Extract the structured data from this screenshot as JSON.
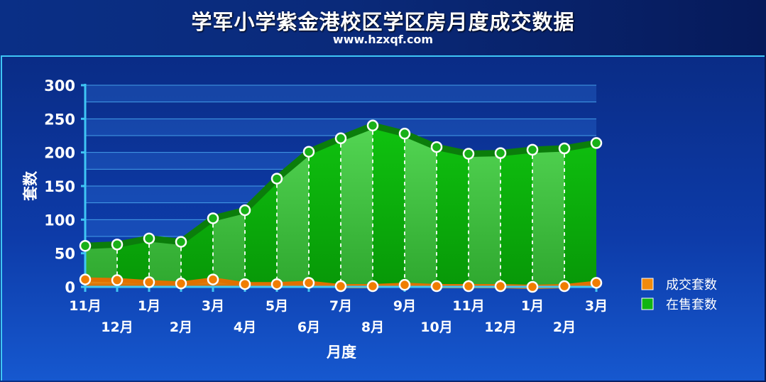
{
  "header": {
    "title": "学军小学紫金港校区学区房月度成交数据",
    "subtitle": "www.hzxqf.com"
  },
  "chart_data": {
    "type": "area",
    "title": "学军小学紫金港校区学区房月度成交数据",
    "subtitle": "www.hzxqf.com",
    "xlabel": "月度",
    "ylabel": "套数",
    "ylim": [
      0,
      300
    ],
    "yticks": [
      0,
      50,
      100,
      150,
      200,
      250,
      300
    ],
    "categories": [
      "11月",
      "12月",
      "1月",
      "2月",
      "3月",
      "4月",
      "5月",
      "6月",
      "7月",
      "8月",
      "9月",
      "10月",
      "11月",
      "12月",
      "1月",
      "2月",
      "3月"
    ],
    "series": [
      {
        "name": "成交套数",
        "color": "#f08a0c",
        "values": [
          11,
          10,
          7,
          5,
          11,
          4,
          4,
          6,
          1,
          1,
          3,
          1,
          1,
          1,
          0,
          1,
          6
        ]
      },
      {
        "name": "在售套数",
        "color": "#11b511",
        "values": [
          61,
          63,
          72,
          67,
          102,
          114,
          161,
          201,
          221,
          240,
          228,
          208,
          198,
          199,
          204,
          206,
          214
        ]
      }
    ],
    "legend_position": "right",
    "grid": true
  }
}
